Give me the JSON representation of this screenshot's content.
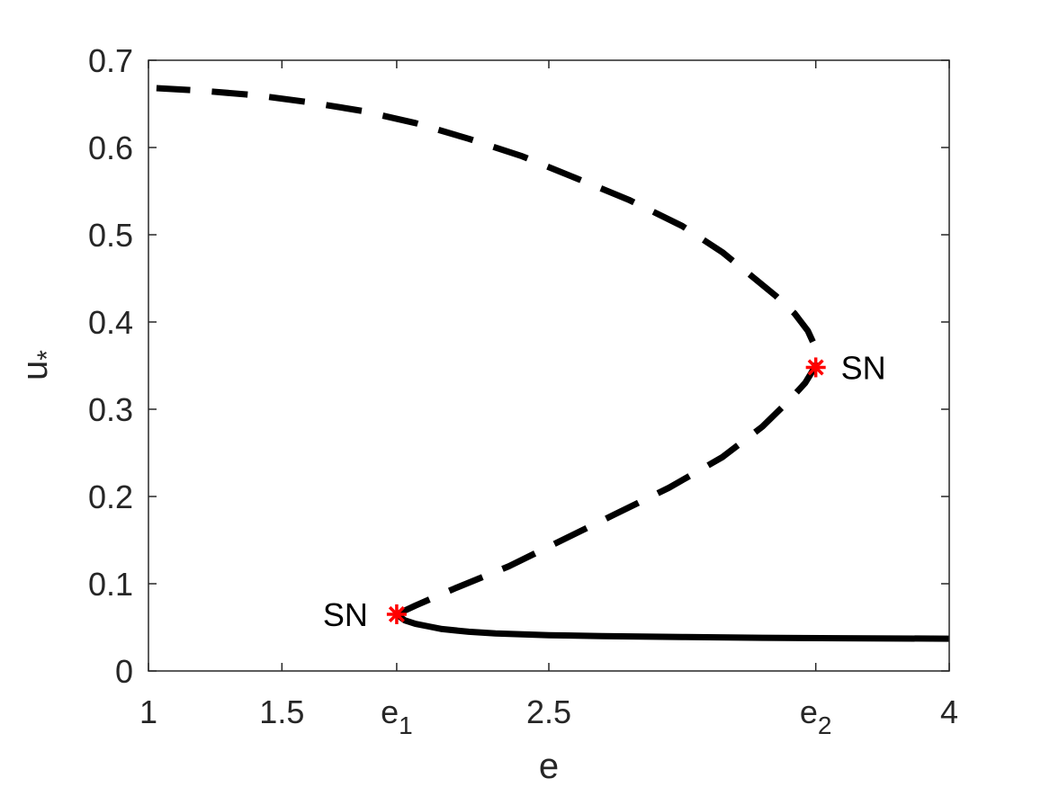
{
  "chart_data": {
    "type": "line",
    "title": "",
    "xlabel": "e",
    "ylabel_main": "u",
    "ylabel_sub": "*",
    "xlim": [
      1,
      4
    ],
    "ylim": [
      0,
      0.7
    ],
    "grid": false,
    "x_ticks": [
      {
        "value": 1,
        "label": "1"
      },
      {
        "value": 1.5,
        "label": "1.5"
      },
      {
        "value": 1.93,
        "label": "e",
        "sub": "1"
      },
      {
        "value": 2.5,
        "label": "2.5"
      },
      {
        "value": 3.5,
        "label": "e",
        "sub": "2"
      },
      {
        "value": 4,
        "label": "4"
      }
    ],
    "y_ticks": [
      {
        "value": 0,
        "label": "0"
      },
      {
        "value": 0.1,
        "label": "0.1"
      },
      {
        "value": 0.2,
        "label": "0.2"
      },
      {
        "value": 0.3,
        "label": "0.3"
      },
      {
        "value": 0.4,
        "label": "0.4"
      },
      {
        "value": 0.5,
        "label": "0.5"
      },
      {
        "value": 0.6,
        "label": "0.6"
      },
      {
        "value": 0.7,
        "label": "0.7"
      }
    ],
    "series": [
      {
        "style": "solid",
        "color": "#000000",
        "x": [
          1.93,
          1.96,
          2.0,
          2.05,
          2.1,
          2.2,
          2.3,
          2.5,
          2.7,
          3.0,
          3.3,
          3.6,
          4.0
        ],
        "y": [
          0.065,
          0.058,
          0.054,
          0.051,
          0.048,
          0.045,
          0.043,
          0.041,
          0.04,
          0.039,
          0.038,
          0.0375,
          0.037
        ]
      },
      {
        "style": "dashed",
        "color": "#000000",
        "x": [
          1.93,
          2.0,
          2.15,
          2.35,
          2.55,
          2.75,
          2.95,
          3.15,
          3.3,
          3.4,
          3.46,
          3.5,
          3.5,
          3.47,
          3.42,
          3.35,
          3.25,
          3.15,
          3.0,
          2.8,
          2.6,
          2.4,
          2.2,
          2.0,
          1.8,
          1.6,
          1.4,
          1.2,
          1.03
        ],
        "y": [
          0.065,
          0.075,
          0.095,
          0.12,
          0.15,
          0.18,
          0.21,
          0.245,
          0.28,
          0.31,
          0.33,
          0.35,
          0.37,
          0.39,
          0.41,
          0.43,
          0.455,
          0.48,
          0.51,
          0.54,
          0.565,
          0.59,
          0.61,
          0.628,
          0.642,
          0.652,
          0.66,
          0.665,
          0.668
        ]
      }
    ],
    "markers": [
      {
        "x": 1.93,
        "y": 0.065,
        "symbol": "*",
        "color": "#ff0000",
        "label": "SN",
        "label_side": "left"
      },
      {
        "x": 3.5,
        "y": 0.348,
        "symbol": "*",
        "color": "#ff0000",
        "label": "SN",
        "label_side": "right"
      }
    ]
  }
}
